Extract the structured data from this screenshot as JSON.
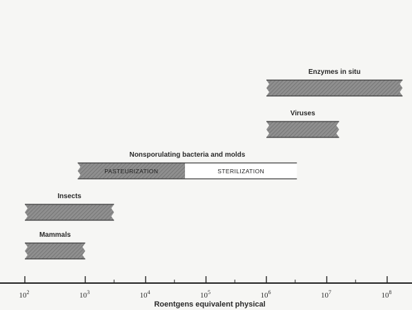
{
  "chart_data": {
    "type": "bar",
    "orientation": "horizontal-range",
    "xlabel": "Roentgens equivalent physical",
    "xscale": "log",
    "xlim": [
      63,
      190000000.0
    ],
    "ticks": [
      {
        "value": 100,
        "base": "10",
        "exp": "2"
      },
      {
        "value": 1000,
        "base": "10",
        "exp": "3"
      },
      {
        "value": 10000,
        "base": "10",
        "exp": "4"
      },
      {
        "value": 100000,
        "base": "10",
        "exp": "5"
      },
      {
        "value": 1000000,
        "base": "10",
        "exp": "6"
      },
      {
        "value": 10000000,
        "base": "10",
        "exp": "7"
      },
      {
        "value": 100000000,
        "base": "10",
        "exp": "8"
      }
    ],
    "minor_ticks": [
      3000,
      30000,
      300000,
      3000000,
      30000000
    ],
    "bars": [
      {
        "label": "Enzymes in situ",
        "start": 1000000,
        "end": 180000000,
        "segments": [
          {
            "start": 1000000,
            "end": 180000000,
            "style": "hatched",
            "text": ""
          }
        ]
      },
      {
        "label": "Viruses",
        "start": 1000000,
        "end": 16000000,
        "segments": [
          {
            "start": 1000000,
            "end": 16000000,
            "style": "hatched",
            "text": ""
          }
        ]
      },
      {
        "label": "Nonsporulating bacteria and molds",
        "start": 750,
        "end": 3200000,
        "segments": [
          {
            "start": 750,
            "end": 45000,
            "style": "hatched",
            "text": "PASTEURIZATION"
          },
          {
            "start": 45000,
            "end": 3200000,
            "style": "plain",
            "text": "STERILIZATION"
          }
        ]
      },
      {
        "label": "Insects",
        "start": 100,
        "end": 3000,
        "segments": [
          {
            "start": 100,
            "end": 3000,
            "style": "hatched",
            "text": ""
          }
        ]
      },
      {
        "label": "Mammals",
        "start": 100,
        "end": 1000,
        "segments": [
          {
            "start": 100,
            "end": 1000,
            "style": "hatched",
            "text": ""
          }
        ]
      }
    ]
  },
  "colors": {
    "bar_fill": "#8a8a8a",
    "bar_border": "#3a3a3a",
    "plain_fill": "#ffffff",
    "axis": "#222222",
    "text": "#2a2a2a"
  }
}
